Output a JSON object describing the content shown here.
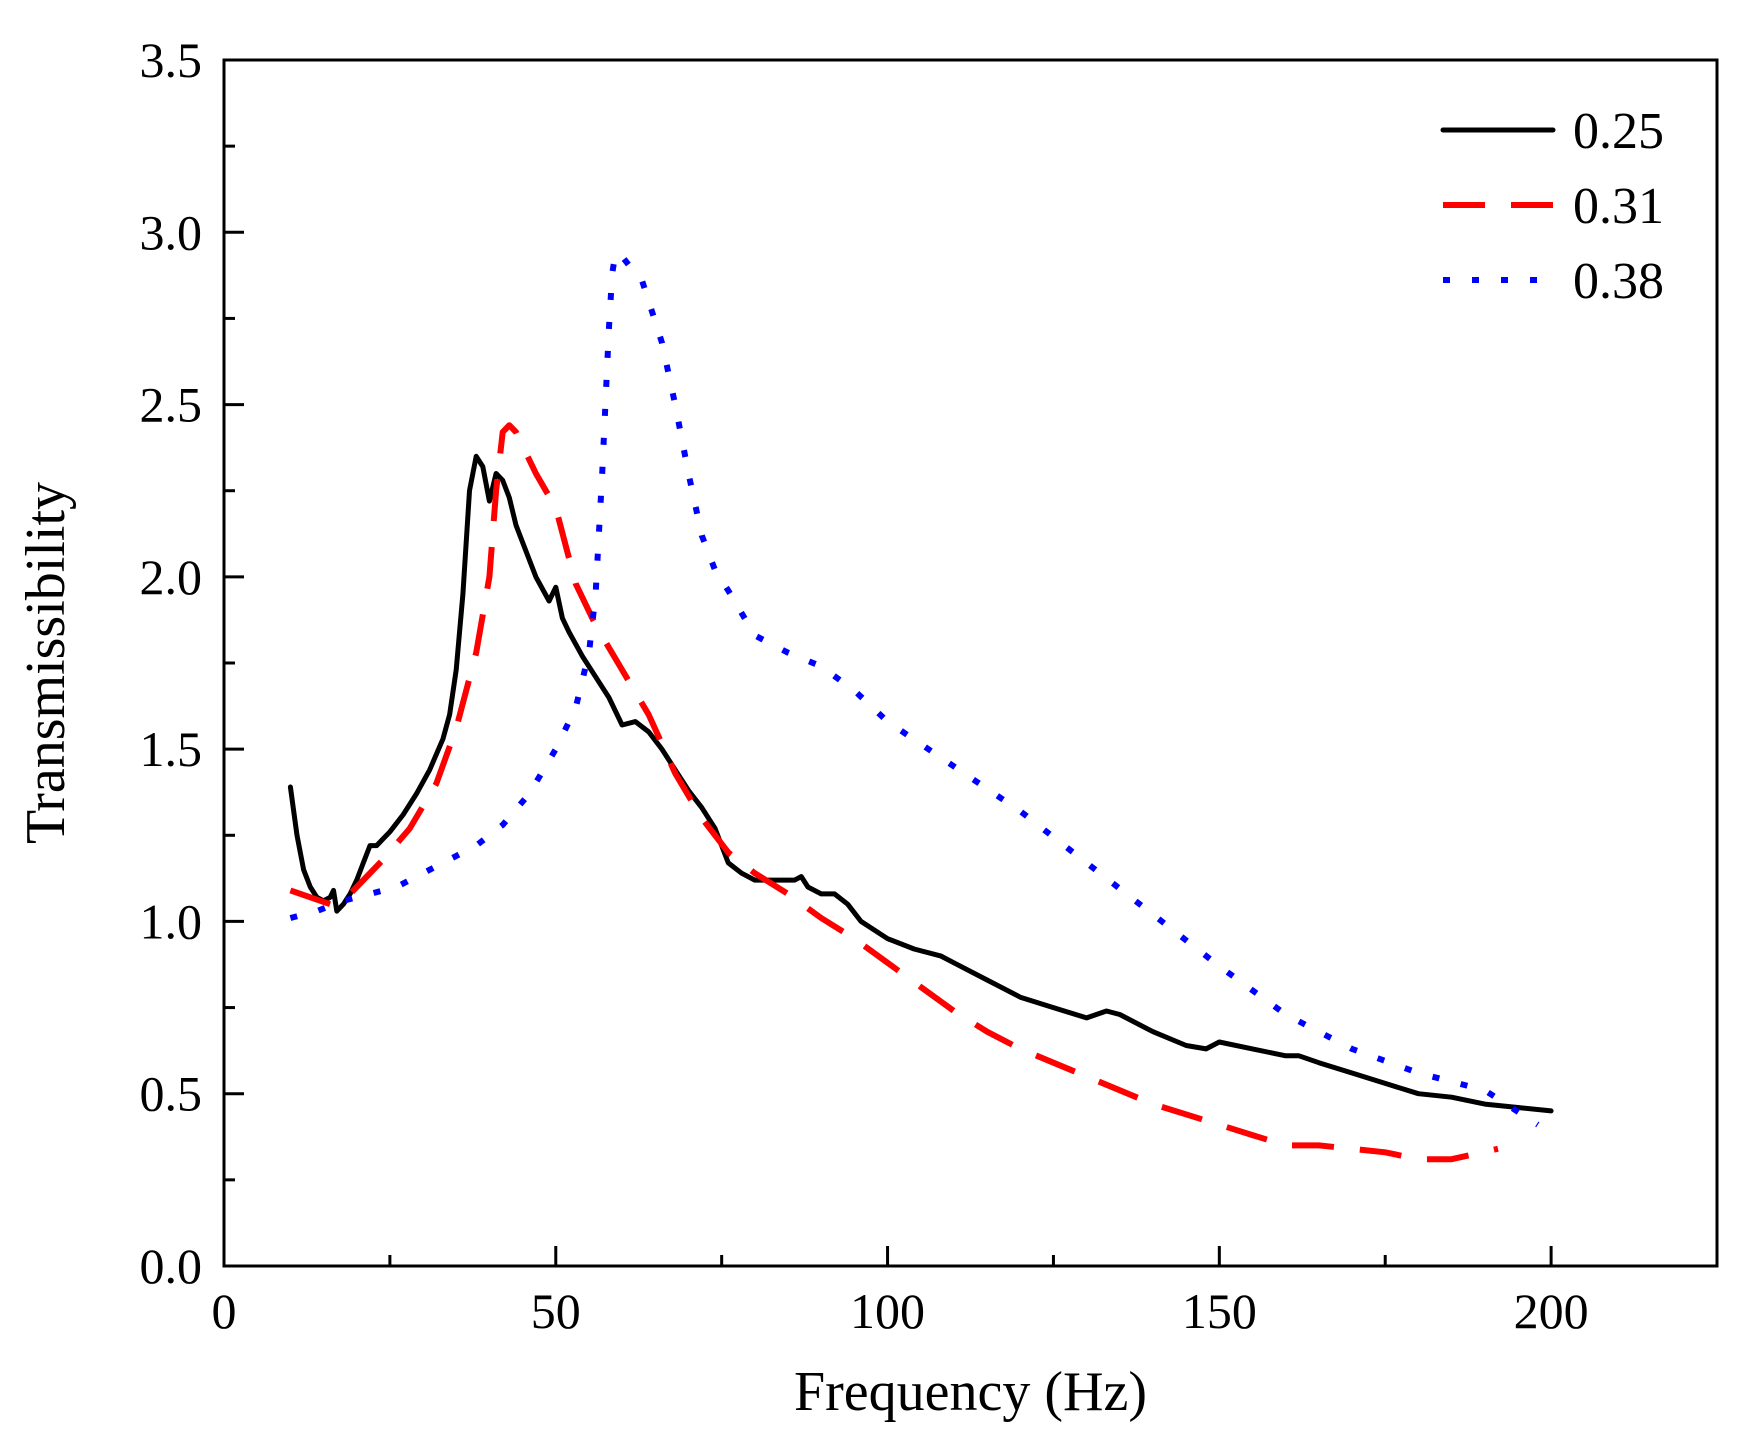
{
  "chart_data": {
    "type": "line",
    "title": "",
    "xlabel": "Frequency (Hz)",
    "ylabel": "Transmissibility",
    "xlim": [
      0,
      225
    ],
    "ylim": [
      0,
      3.5
    ],
    "xticks": [
      0,
      50,
      100,
      150,
      200
    ],
    "xtick_labels": [
      "0",
      "50",
      "100",
      "150",
      "200"
    ],
    "yticks": [
      0.0,
      0.5,
      1.0,
      1.5,
      2.0,
      2.5,
      3.0,
      3.5
    ],
    "ytick_labels": [
      "0.0",
      "0.5",
      "1.0",
      "1.5",
      "2.0",
      "2.5",
      "3.0",
      "3.5"
    ],
    "grid": false,
    "legend_position": "top-right",
    "series": [
      {
        "name": "0.25",
        "color": "#000000",
        "style": "solid",
        "x": [
          10,
          11,
          12,
          13,
          14,
          15,
          16,
          16.5,
          17,
          18,
          19,
          20,
          21,
          22,
          23,
          25,
          27,
          29,
          31,
          33,
          34,
          35,
          36,
          37,
          38,
          39,
          40,
          41,
          42,
          43,
          44,
          45,
          47,
          49,
          50,
          51,
          52,
          54,
          56,
          58,
          60,
          62,
          64,
          66,
          68,
          70,
          72,
          74,
          76,
          78,
          80,
          82,
          84,
          86,
          87,
          88,
          90,
          92,
          94,
          96,
          100,
          104,
          108,
          110,
          115,
          120,
          125,
          130,
          133,
          135,
          140,
          145,
          148,
          150,
          155,
          160,
          162,
          165,
          170,
          175,
          180,
          185,
          190,
          195,
          200
        ],
        "values": [
          1.39,
          1.25,
          1.15,
          1.1,
          1.07,
          1.06,
          1.07,
          1.09,
          1.03,
          1.05,
          1.08,
          1.12,
          1.17,
          1.22,
          1.22,
          1.26,
          1.31,
          1.37,
          1.44,
          1.53,
          1.6,
          1.73,
          1.95,
          2.25,
          2.35,
          2.32,
          2.22,
          2.3,
          2.28,
          2.23,
          2.15,
          2.1,
          2.0,
          1.93,
          1.97,
          1.88,
          1.84,
          1.77,
          1.71,
          1.65,
          1.57,
          1.58,
          1.55,
          1.5,
          1.44,
          1.38,
          1.33,
          1.27,
          1.17,
          1.14,
          1.12,
          1.12,
          1.12,
          1.12,
          1.13,
          1.1,
          1.08,
          1.08,
          1.05,
          1.0,
          0.95,
          0.92,
          0.9,
          0.88,
          0.83,
          0.78,
          0.75,
          0.72,
          0.74,
          0.73,
          0.68,
          0.64,
          0.63,
          0.65,
          0.63,
          0.61,
          0.61,
          0.59,
          0.56,
          0.53,
          0.5,
          0.49,
          0.47,
          0.46,
          0.45
        ]
      },
      {
        "name": "0.31",
        "color": "#ff0000",
        "style": "dashed",
        "x": [
          10,
          13,
          16,
          18,
          20,
          24,
          28,
          32,
          35,
          38,
          40,
          41,
          42,
          43,
          44,
          45,
          47,
          50,
          53,
          56,
          60,
          64,
          68,
          72,
          76,
          80,
          85,
          90,
          95,
          100,
          105,
          110,
          115,
          120,
          130,
          140,
          150,
          155,
          160,
          165,
          170,
          175,
          180,
          185,
          192
        ],
        "values": [
          1.09,
          1.07,
          1.05,
          1.06,
          1.1,
          1.18,
          1.27,
          1.4,
          1.56,
          1.78,
          2.0,
          2.25,
          2.42,
          2.44,
          2.42,
          2.38,
          2.3,
          2.2,
          1.98,
          1.86,
          1.73,
          1.6,
          1.43,
          1.3,
          1.2,
          1.14,
          1.08,
          1.01,
          0.95,
          0.88,
          0.81,
          0.74,
          0.68,
          0.63,
          0.55,
          0.47,
          0.41,
          0.38,
          0.35,
          0.35,
          0.34,
          0.33,
          0.31,
          0.31,
          0.34
        ]
      },
      {
        "name": "0.38",
        "color": "#0000ff",
        "style": "dotted",
        "x": [
          10,
          14,
          18,
          22,
          26,
          30,
          34,
          38,
          42,
          46,
          50,
          53,
          55,
          56,
          57,
          58,
          58.5,
          59,
          60,
          62,
          63,
          64,
          66,
          68,
          70,
          72,
          74,
          76,
          80,
          85,
          90,
          95,
          100,
          110,
          120,
          130,
          140,
          150,
          160,
          170,
          180,
          190,
          198
        ],
        "values": [
          1.01,
          1.03,
          1.06,
          1.08,
          1.1,
          1.14,
          1.18,
          1.22,
          1.28,
          1.37,
          1.5,
          1.62,
          1.78,
          1.95,
          2.3,
          2.72,
          2.88,
          2.94,
          2.93,
          2.88,
          2.86,
          2.8,
          2.68,
          2.5,
          2.3,
          2.12,
          2.02,
          1.96,
          1.83,
          1.78,
          1.74,
          1.67,
          1.58,
          1.45,
          1.32,
          1.17,
          1.02,
          0.87,
          0.73,
          0.63,
          0.56,
          0.51,
          0.41
        ]
      }
    ]
  }
}
